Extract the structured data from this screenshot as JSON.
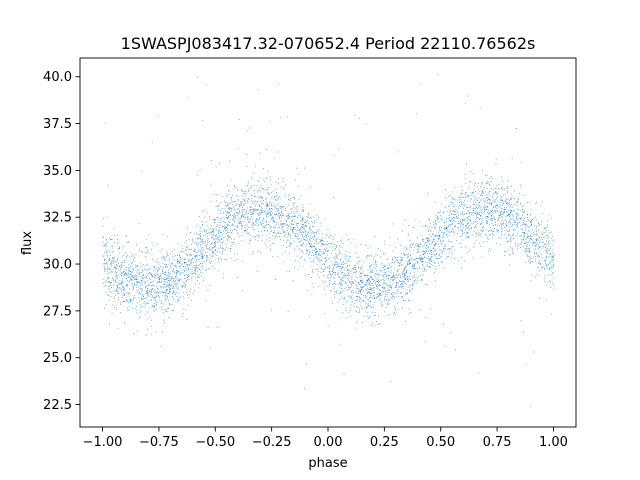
{
  "chart_data": {
    "type": "scatter",
    "title": "1SWASPJ083417.32-070652.4 Period 22110.76562s",
    "xlabel": "phase",
    "ylabel": "flux",
    "xlim": [
      -1.1,
      1.1
    ],
    "ylim": [
      21.3,
      41.0
    ],
    "xticks": [
      -1.0,
      -0.75,
      -0.5,
      -0.25,
      0.0,
      0.25,
      0.5,
      0.75,
      1.0
    ],
    "xtick_labels": [
      "−1.00",
      "−0.75",
      "−0.50",
      "−0.25",
      "0.00",
      "0.25",
      "0.50",
      "0.75",
      "1.00"
    ],
    "yticks": [
      22.5,
      25.0,
      27.5,
      30.0,
      32.5,
      35.0,
      37.5,
      40.0
    ],
    "ytick_labels": [
      "22.5",
      "25.0",
      "27.5",
      "30.0",
      "32.5",
      "35.0",
      "37.5",
      "40.0"
    ],
    "grid": false,
    "marker_color": "#1f77b4",
    "series": [
      {
        "curve": "sinusoid",
        "mean_flux": 30.85,
        "amplitude": 2.05,
        "period_in_phase": 1.0,
        "max_at_phase": [
          -0.3,
          0.7
        ],
        "min_at_phase": [
          -0.8,
          0.2
        ],
        "scatter_sigma": 0.85,
        "x": [
          -1.0,
          -0.9,
          -0.8,
          -0.7,
          -0.6,
          -0.5,
          -0.4,
          -0.3,
          -0.2,
          -0.1,
          0.0,
          0.1,
          0.2,
          0.3,
          0.4,
          0.5,
          0.6,
          0.7,
          0.8,
          0.9,
          1.0
        ],
        "y": [
          30.2,
          29.3,
          28.8,
          29.2,
          30.4,
          31.6,
          32.5,
          32.9,
          32.5,
          31.3,
          30.2,
          29.3,
          28.8,
          29.2,
          30.4,
          31.6,
          32.5,
          32.9,
          32.5,
          31.3,
          30.2
        ]
      }
    ]
  }
}
